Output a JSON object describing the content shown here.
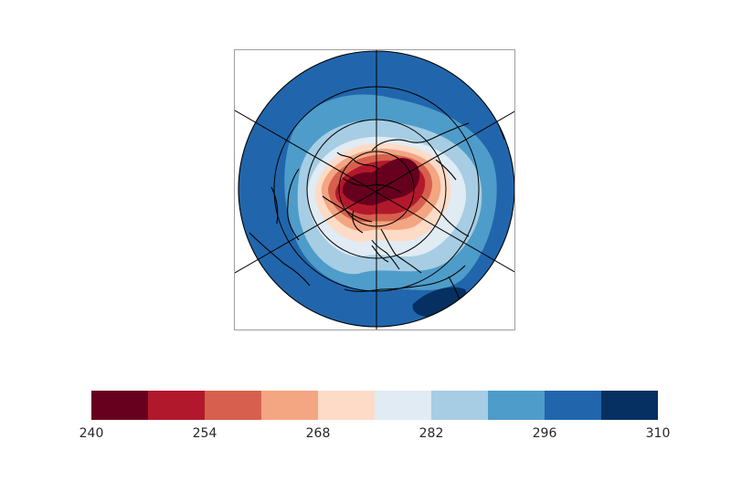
{
  "map": {
    "projection": "north-polar-stereographic",
    "field_description": "temperature-like field, cold (red) near pole, warm (blue) toward edge",
    "has_coastlines": true,
    "has_graticule": true
  },
  "colorbar": {
    "colors": [
      "#67001f",
      "#b2182b",
      "#d6604d",
      "#f4a582",
      "#fddbc7",
      "#e0ebf3",
      "#a6cde3",
      "#4e9cc9",
      "#2166ac",
      "#053061"
    ],
    "tick_labels": [
      "240",
      "254",
      "268",
      "282",
      "296",
      "310"
    ],
    "min": 240,
    "max": 310,
    "levels": 10
  }
}
